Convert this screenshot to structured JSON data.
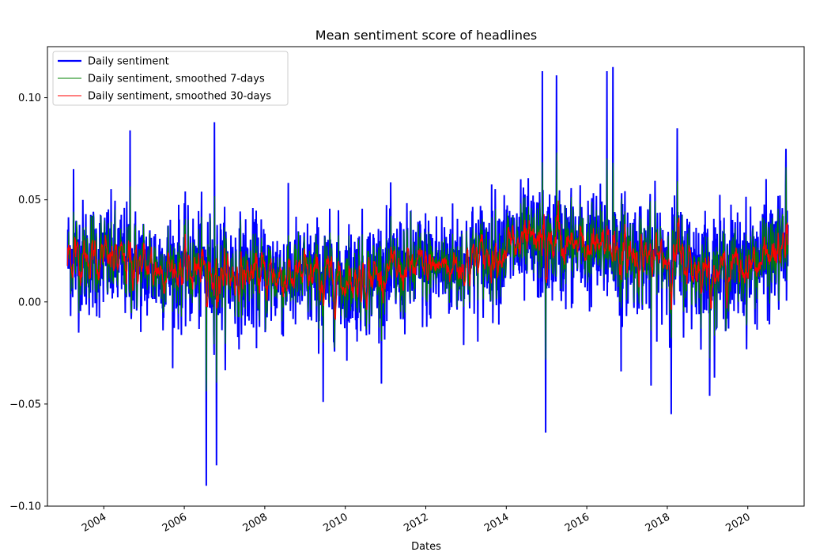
{
  "chart_data": {
    "type": "line",
    "title": "Mean sentiment score of headlines",
    "xlabel": "Dates",
    "ylabel": "",
    "xlim": [
      2002.6,
      2021.4
    ],
    "ylim": [
      -0.1,
      0.125
    ],
    "x_ticks": [
      2004,
      2006,
      2008,
      2010,
      2012,
      2014,
      2016,
      2018,
      2020
    ],
    "x_tick_labels": [
      "2004",
      "2006",
      "2008",
      "2010",
      "2012",
      "2014",
      "2016",
      "2018",
      "2020"
    ],
    "y_ticks": [
      -0.1,
      -0.05,
      0.0,
      0.05,
      0.1
    ],
    "y_tick_labels": [
      "−0.10",
      "−0.05",
      "0.00",
      "0.05",
      "0.10"
    ],
    "legend_position": "top-left",
    "x_range": [
      2003.1,
      2021.0
    ],
    "series": [
      {
        "name": "Daily sentiment",
        "color": "#0000ff",
        "trend": [
          [
            2003.1,
            0.022
          ],
          [
            2004.0,
            0.021
          ],
          [
            2005.0,
            0.017
          ],
          [
            2006.0,
            0.016
          ],
          [
            2007.0,
            0.014
          ],
          [
            2008.0,
            0.013
          ],
          [
            2009.0,
            0.012
          ],
          [
            2010.0,
            0.011
          ],
          [
            2011.0,
            0.014
          ],
          [
            2012.0,
            0.017
          ],
          [
            2013.0,
            0.019
          ],
          [
            2014.0,
            0.027
          ],
          [
            2015.0,
            0.028
          ],
          [
            2016.0,
            0.027
          ],
          [
            2017.0,
            0.024
          ],
          [
            2018.0,
            0.022
          ],
          [
            2019.0,
            0.015
          ],
          [
            2020.0,
            0.018
          ],
          [
            2021.0,
            0.026
          ]
        ],
        "noise_sd": 0.014,
        "spikes": [
          [
            2003.25,
            0.065
          ],
          [
            2004.65,
            0.084
          ],
          [
            2006.55,
            -0.09
          ],
          [
            2006.75,
            0.088
          ],
          [
            2006.8,
            -0.08
          ],
          [
            2009.45,
            -0.049
          ],
          [
            2014.9,
            0.113
          ],
          [
            2014.98,
            -0.064
          ],
          [
            2015.25,
            0.111
          ],
          [
            2016.5,
            0.113
          ],
          [
            2016.65,
            0.115
          ],
          [
            2016.85,
            -0.034
          ],
          [
            2017.6,
            -0.041
          ],
          [
            2018.1,
            -0.055
          ],
          [
            2019.05,
            -0.046
          ],
          [
            2018.25,
            0.085
          ],
          [
            2020.95,
            0.075
          ]
        ]
      },
      {
        "name": "Daily sentiment, smoothed 7-days",
        "color": "#008000",
        "smoothing_days": 7
      },
      {
        "name": "Daily sentiment, smoothed 30-days",
        "color": "#ff0000",
        "smoothing_days": 30
      }
    ]
  }
}
